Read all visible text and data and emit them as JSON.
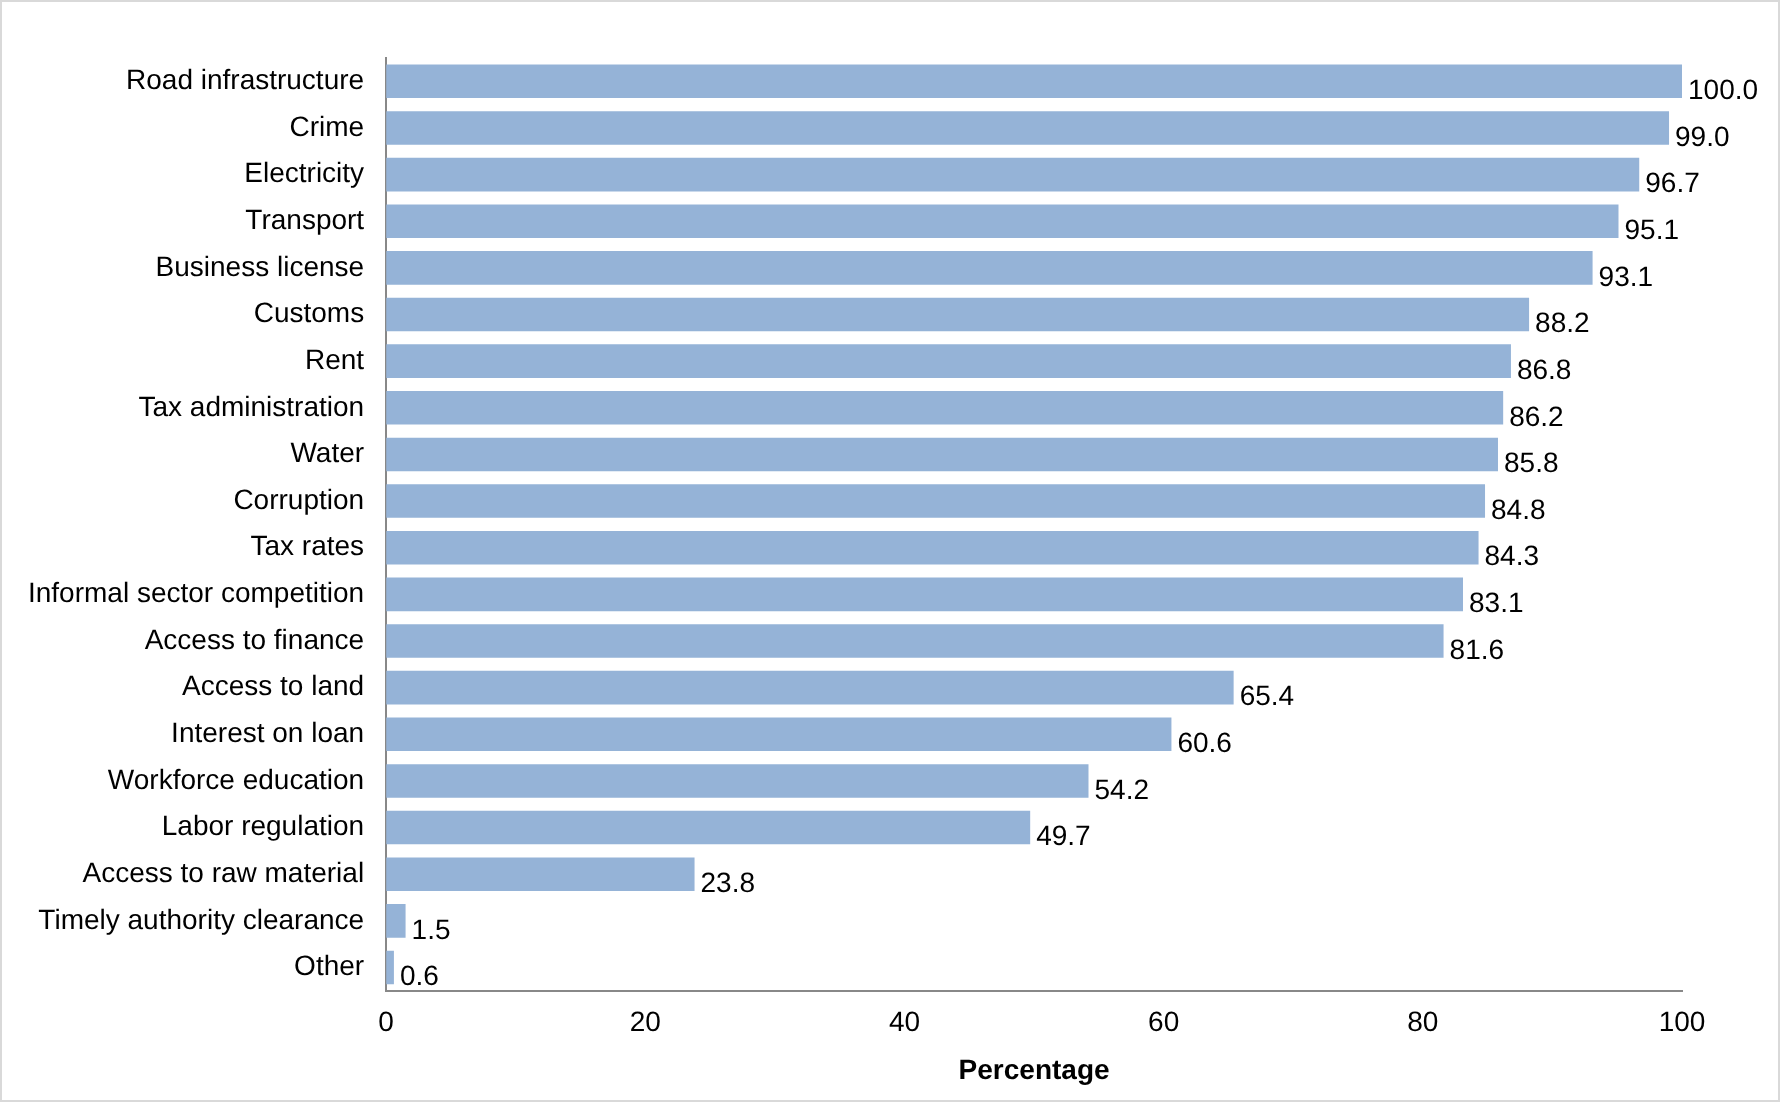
{
  "chart_data": {
    "type": "bar",
    "orientation": "horizontal",
    "xlabel": "Percentage",
    "categories": [
      "Road infrastructure",
      "Crime",
      "Electricity",
      "Transport",
      "Business license",
      "Customs",
      "Rent",
      "Tax administration",
      "Water",
      "Corruption",
      "Tax rates",
      "Informal sector competition",
      "Access to finance",
      "Access to land",
      "Interest on loan",
      "Workforce education",
      "Labor regulation",
      "Access to raw material",
      "Timely authority clearance",
      "Other"
    ],
    "values": [
      100.0,
      99.0,
      96.7,
      95.1,
      93.1,
      88.2,
      86.8,
      86.2,
      85.8,
      84.8,
      84.3,
      83.1,
      81.6,
      65.4,
      60.6,
      54.2,
      49.7,
      23.8,
      1.5,
      0.6
    ],
    "value_labels": [
      "100.0",
      "99.0",
      "96.7",
      "95.1",
      "93.1",
      "88.2",
      "86.8",
      "86.2",
      "85.8",
      "84.8",
      "84.3",
      "83.1",
      "81.6",
      "65.4",
      "60.6",
      "54.2",
      "49.7",
      "23.8",
      "1.5",
      "0.6"
    ],
    "color": "#95b3d7",
    "xlim": [
      0,
      100
    ],
    "xticks": [
      0,
      20,
      40,
      60,
      80,
      100
    ],
    "grid": false,
    "legend": false
  }
}
